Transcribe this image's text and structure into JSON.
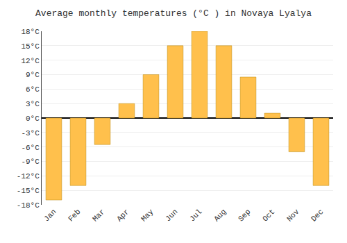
{
  "chart_data": {
    "type": "bar",
    "title": "Average monthly temperatures (°C ) in Novaya Lyalya",
    "categories": [
      "Jan",
      "Feb",
      "Mar",
      "Apr",
      "May",
      "Jun",
      "Jul",
      "Aug",
      "Sep",
      "Oct",
      "Nov",
      "Dec"
    ],
    "values": [
      -17,
      -14,
      -5.5,
      3,
      9,
      15,
      18,
      15,
      8.5,
      1,
      -7,
      -14
    ],
    "color": "#FFC04C",
    "ylim": [
      -18,
      18
    ],
    "yticks": [
      {
        "value": -18,
        "label": "-18°C"
      },
      {
        "value": -15,
        "label": "-15°C"
      },
      {
        "value": -12,
        "label": "-12°C"
      },
      {
        "value": -9,
        "label": "-9°C"
      },
      {
        "value": -6,
        "label": "-6°C"
      },
      {
        "value": -3,
        "label": "-3°C"
      },
      {
        "value": 0,
        "label": "0°C"
      },
      {
        "value": 3,
        "label": "3°C"
      },
      {
        "value": 6,
        "label": "6°C"
      },
      {
        "value": 9,
        "label": "9°C"
      },
      {
        "value": 12,
        "label": "12°C"
      },
      {
        "value": 15,
        "label": "15°C"
      },
      {
        "value": 18,
        "label": "18°C"
      }
    ],
    "grid": true
  }
}
